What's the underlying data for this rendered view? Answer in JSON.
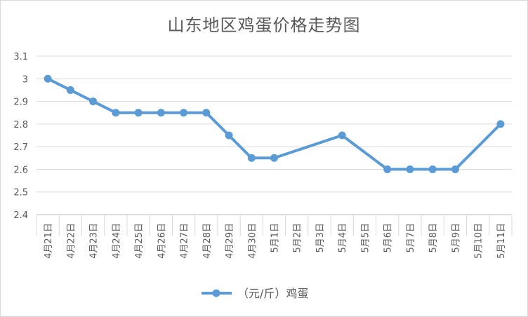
{
  "chart_data": {
    "type": "line",
    "title": "山东地区鸡蛋价格走势图",
    "categories": [
      "4月21日",
      "4月22日",
      "4月23日",
      "4月24日",
      "4月25日",
      "4月26日",
      "4月27日",
      "4月28日",
      "4月29日",
      "4月30日",
      "5月1日",
      "5月2日",
      "5月3日",
      "5月4日",
      "5月5日",
      "5月6日",
      "5月7日",
      "5月8日",
      "5月9日",
      "5月10日",
      "5月11日"
    ],
    "series": [
      {
        "name": "（元/斤）鸡蛋",
        "color": "#5b9bd5",
        "values": [
          3.0,
          2.95,
          2.9,
          2.85,
          2.85,
          2.85,
          2.85,
          2.85,
          2.75,
          2.65,
          2.65,
          null,
          null,
          2.75,
          null,
          2.6,
          2.6,
          2.6,
          2.6,
          null,
          2.8
        ]
      }
    ],
    "yticks": [
      "2.4",
      "2.5",
      "2.6",
      "2.7",
      "2.8",
      "2.9",
      "3",
      "3.1"
    ],
    "ylim": [
      2.4,
      3.1
    ],
    "grid": true,
    "legend": "bottom",
    "xlabel": "",
    "ylabel": ""
  }
}
